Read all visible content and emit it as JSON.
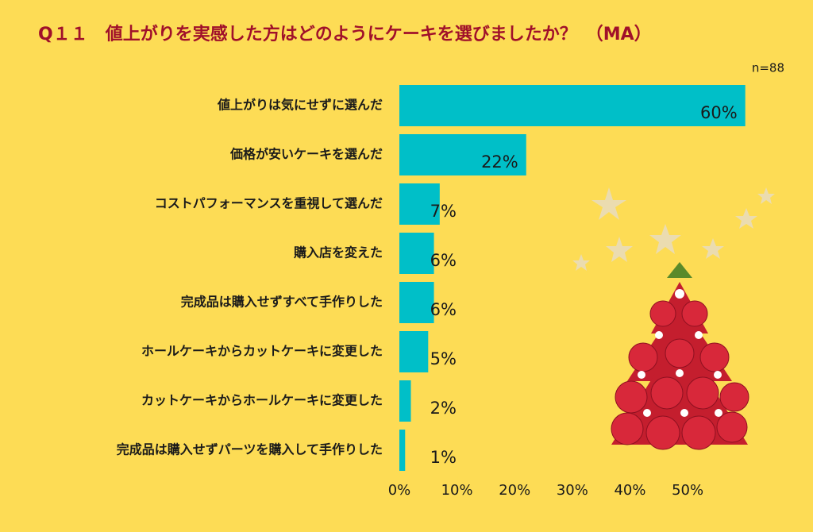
{
  "chart_data": {
    "type": "hbar",
    "title": "Q１１　値上がりを実感した方はどのようにケーキを選びましたか？　（MA）",
    "subtitle": "n=88",
    "categories": [
      "値上がりは気にせずに選んだ",
      "価格が安いケーキを選んだ",
      "コストパフォーマンスを重視して選んだ",
      "購入店を変えた",
      "完成品は購入せずすべて手作りした",
      "ホールケーキからカットケーキに変更した",
      "カットケーキからホールケーキに変更した",
      "完成品は購入せずパーツを購入して手作りした"
    ],
    "values": [
      60,
      22,
      7,
      6,
      6,
      5,
      2,
      1
    ],
    "value_labels": [
      "60%",
      "22%",
      "7%",
      "6%",
      "6%",
      "5%",
      "2%",
      "1%"
    ],
    "color": "#00bfc8",
    "xlim": [
      0,
      65
    ],
    "xticks": [
      {
        "value": 0,
        "label": "0%"
      },
      {
        "value": 10,
        "label": "10%"
      },
      {
        "value": 20,
        "label": "20%"
      },
      {
        "value": 30,
        "label": "30%"
      },
      {
        "value": 40,
        "label": "40%"
      },
      {
        "value": 50,
        "label": "50%"
      }
    ],
    "grid": false
  }
}
